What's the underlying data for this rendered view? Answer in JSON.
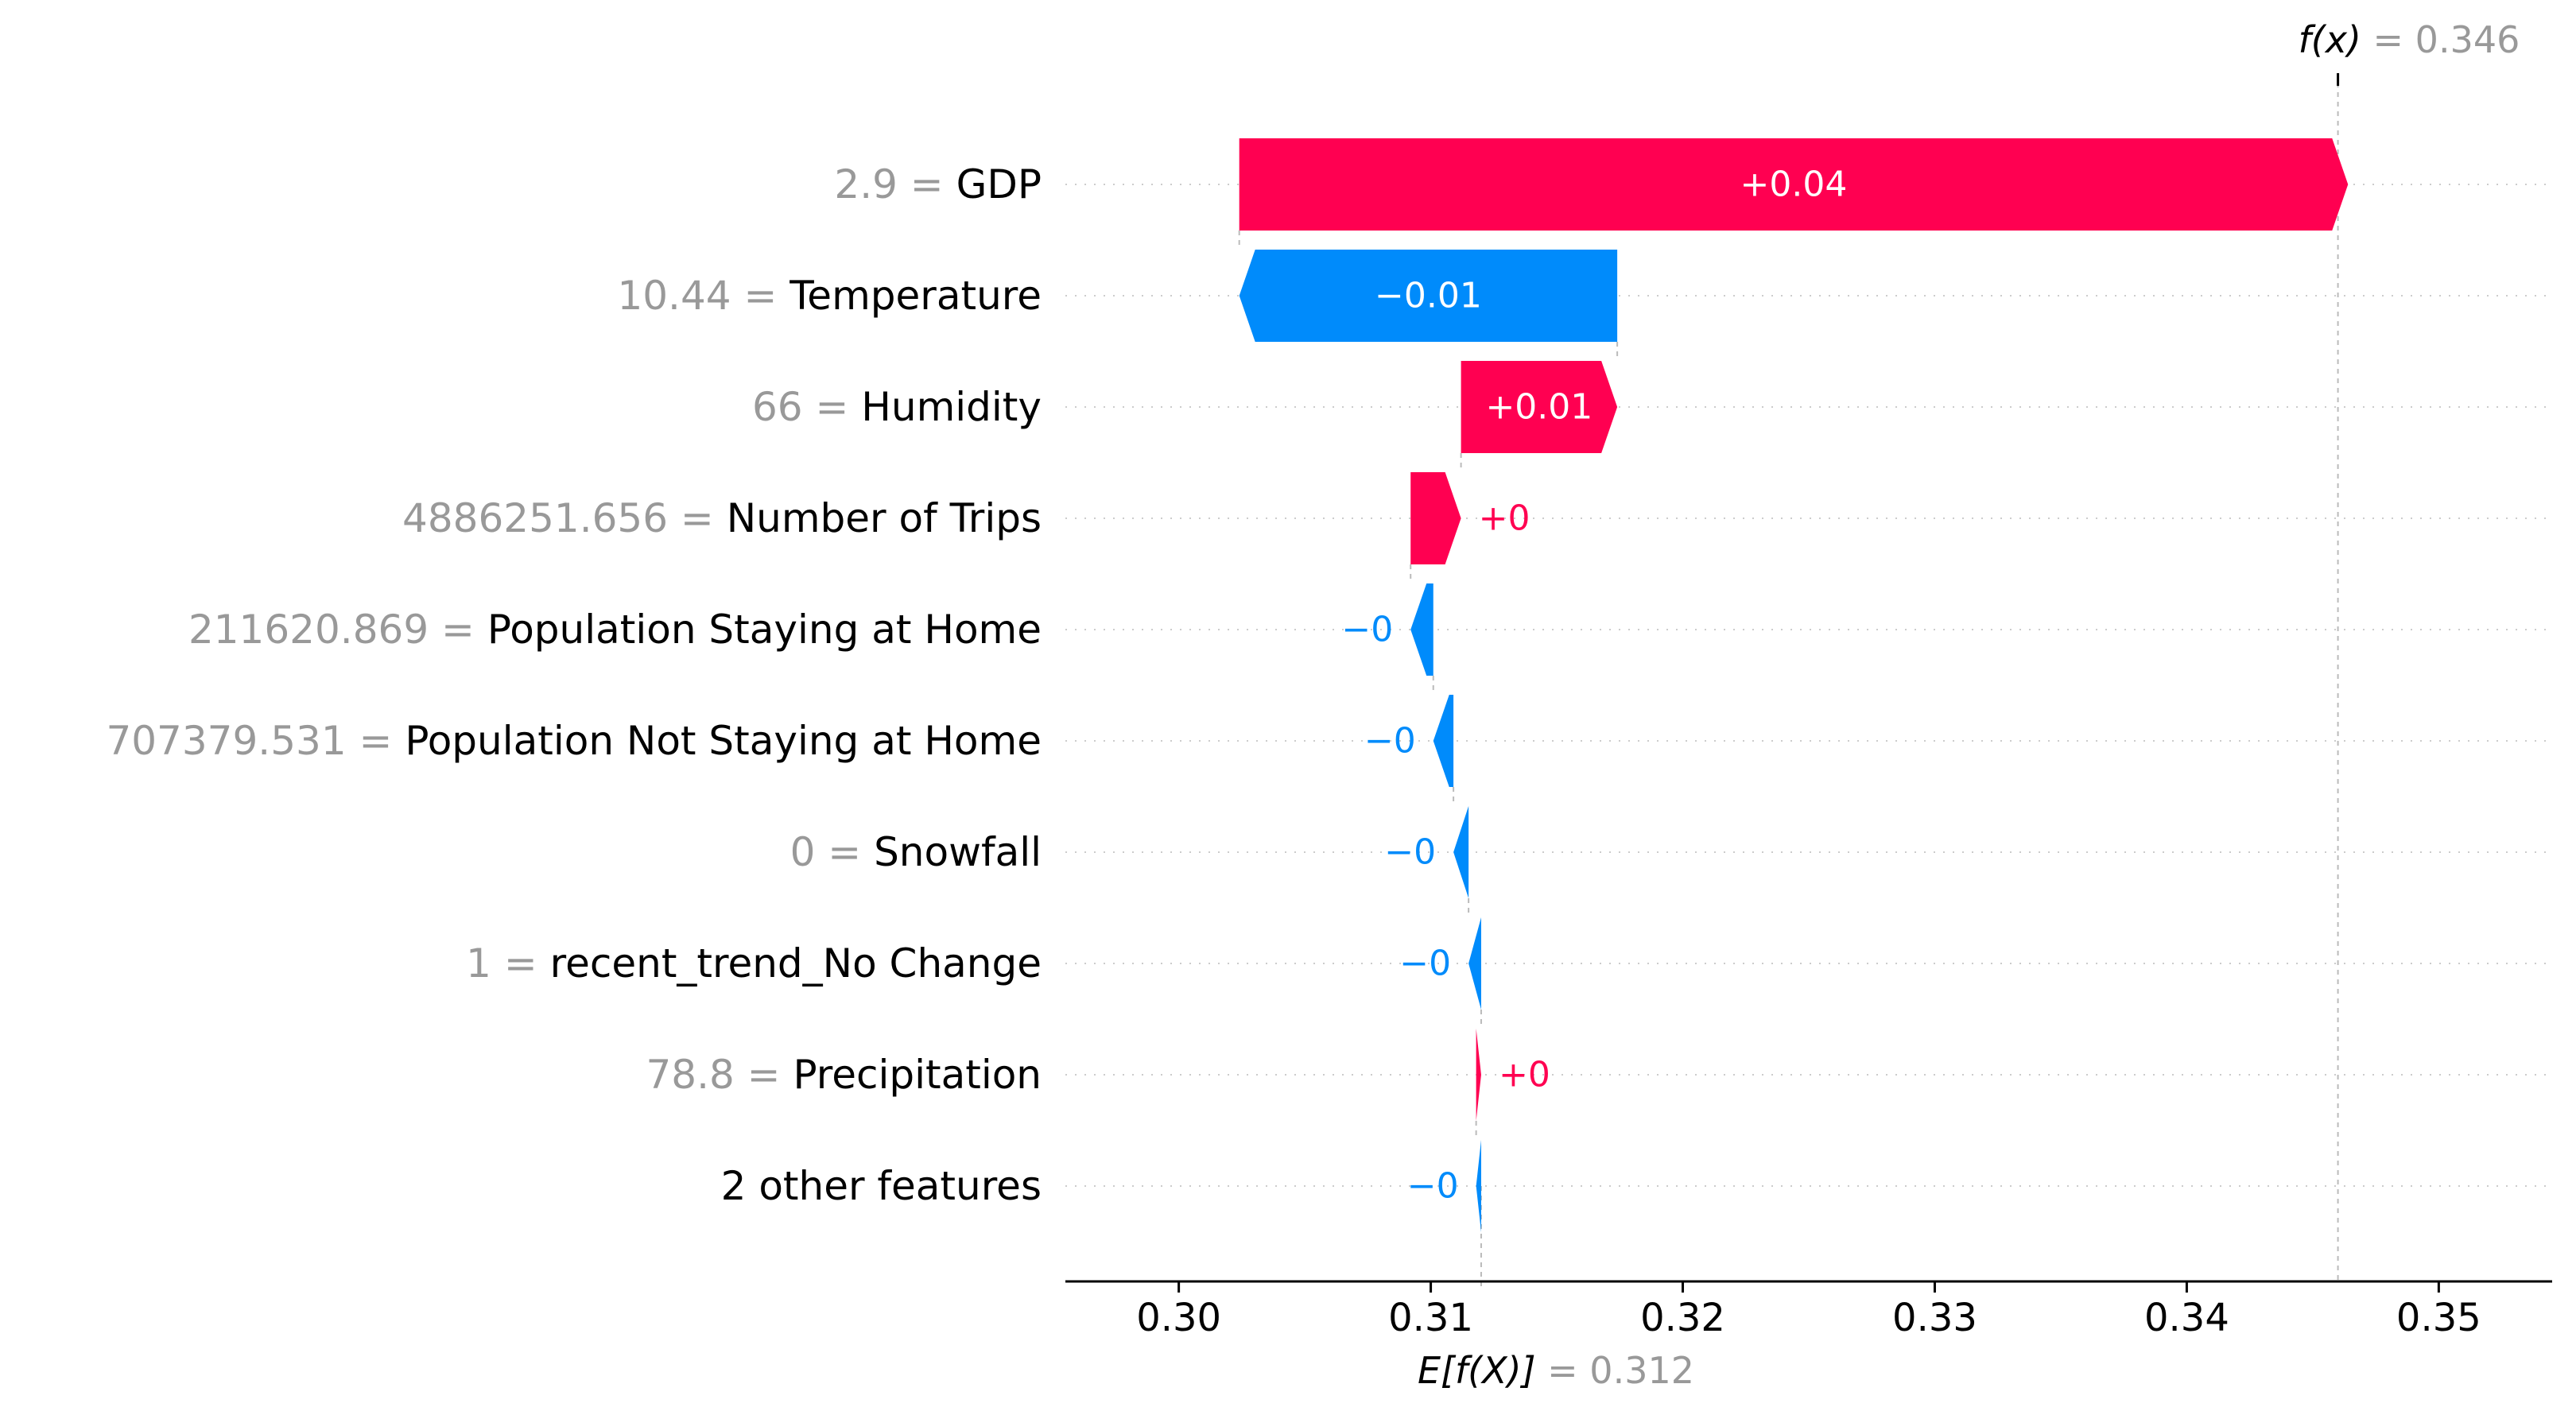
{
  "colors": {
    "positive": "#ff0051",
    "negative": "#008bfb",
    "value_text": "#999999",
    "label_text": "#000000",
    "bar_label_inside": "#ffffff"
  },
  "chart_data": {
    "type": "waterfall",
    "base_value": 0.312,
    "final_value": 0.346,
    "fx_label": "f(x)",
    "fx_value_text": "0.346",
    "ex_label": "E[f(X)]",
    "ex_value_text": "0.312",
    "xlim": [
      0.2955,
      0.3545
    ],
    "x_ticks": [
      0.3,
      0.31,
      0.32,
      0.33,
      0.34,
      0.35
    ],
    "x_tick_labels": [
      "0.30",
      "0.31",
      "0.32",
      "0.33",
      "0.34",
      "0.35"
    ],
    "features": [
      {
        "value": "2.9",
        "name": "GDP",
        "shap": 0.044,
        "label": "+0.04"
      },
      {
        "value": "10.44",
        "name": "Temperature",
        "shap": -0.015,
        "label": "−0.01"
      },
      {
        "value": "66",
        "name": "Humidity",
        "shap": 0.0062,
        "label": "+0.01"
      },
      {
        "value": "4886251.656",
        "name": "Number of Trips",
        "shap": 0.002,
        "label": "+0"
      },
      {
        "value": "211620.869",
        "name": "Population Staying at Home",
        "shap": -0.0009,
        "label": "−0"
      },
      {
        "value": "707379.531",
        "name": "Population Not Staying at Home",
        "shap": -0.0008,
        "label": "−0"
      },
      {
        "value": "0",
        "name": "Snowfall",
        "shap": -0.0006,
        "label": "−0"
      },
      {
        "value": "1",
        "name": "recent_trend_No Change",
        "shap": -0.0005,
        "label": "−0"
      },
      {
        "value": "78.8",
        "name": "Precipitation",
        "shap": 0.0002,
        "label": "+0"
      },
      {
        "value": "",
        "name": "2 other features",
        "shap": -0.0002,
        "label": "−0"
      }
    ]
  }
}
